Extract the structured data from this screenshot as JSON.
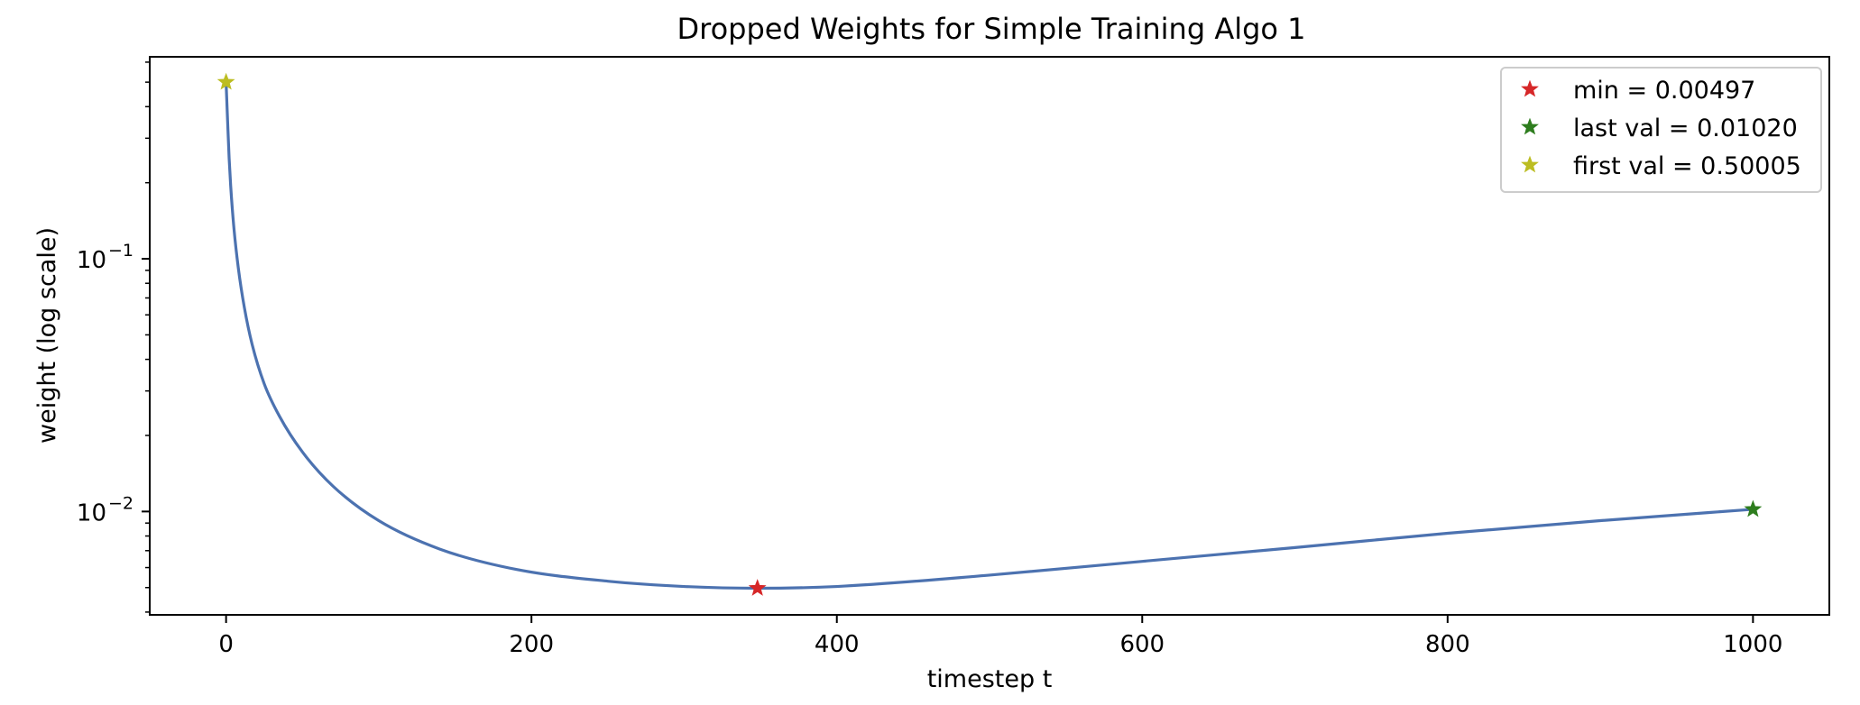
{
  "chart_data": {
    "type": "line",
    "title": "Dropped Weights for Simple Training Algo 1",
    "xlabel": "timestep t",
    "ylabel": "weight (log scale)",
    "xlim": [
      -50,
      1050
    ],
    "ylim": [
      0.0039,
      0.63
    ],
    "yscale": "log",
    "grid": false,
    "legend_position": "top-right",
    "x_ticks": [
      0,
      200,
      400,
      600,
      800,
      1000
    ],
    "y_major_ticks": [
      {
        "value": 0.1,
        "base": "10",
        "exp": "−1"
      },
      {
        "value": 0.01,
        "base": "10",
        "exp": "−2"
      }
    ],
    "y_minor_ticks": [
      0.004,
      0.005,
      0.006,
      0.007,
      0.008,
      0.009,
      0.02,
      0.03,
      0.04,
      0.05,
      0.06,
      0.07,
      0.08,
      0.09,
      0.2,
      0.3,
      0.4,
      0.5,
      0.6
    ],
    "series": [
      {
        "color": "#4c72b0",
        "x": [
          0,
          1,
          2,
          3,
          5,
          8,
          12,
          17,
          25,
          35,
          50,
          70,
          100,
          140,
          190,
          250,
          300,
          348,
          400,
          500,
          600,
          700,
          800,
          900,
          1000
        ],
        "y": [
          0.50005,
          0.35,
          0.25,
          0.195,
          0.135,
          0.092,
          0.064,
          0.046,
          0.032,
          0.0238,
          0.0172,
          0.0126,
          0.0092,
          0.0071,
          0.0059,
          0.0053,
          0.00505,
          0.00497,
          0.00505,
          0.0056,
          0.00635,
          0.0072,
          0.0082,
          0.0092,
          0.0102
        ]
      }
    ],
    "markers": [
      {
        "label": "min = 0.00497",
        "x": 348,
        "y": 0.00497,
        "color": "#d62728"
      },
      {
        "label": "last val = 0.01020",
        "x": 1000,
        "y": 0.0102,
        "color": "#2e7d1e"
      },
      {
        "label": "first val = 0.50005",
        "x": 0,
        "y": 0.50005,
        "color": "#bcbd22"
      }
    ]
  }
}
